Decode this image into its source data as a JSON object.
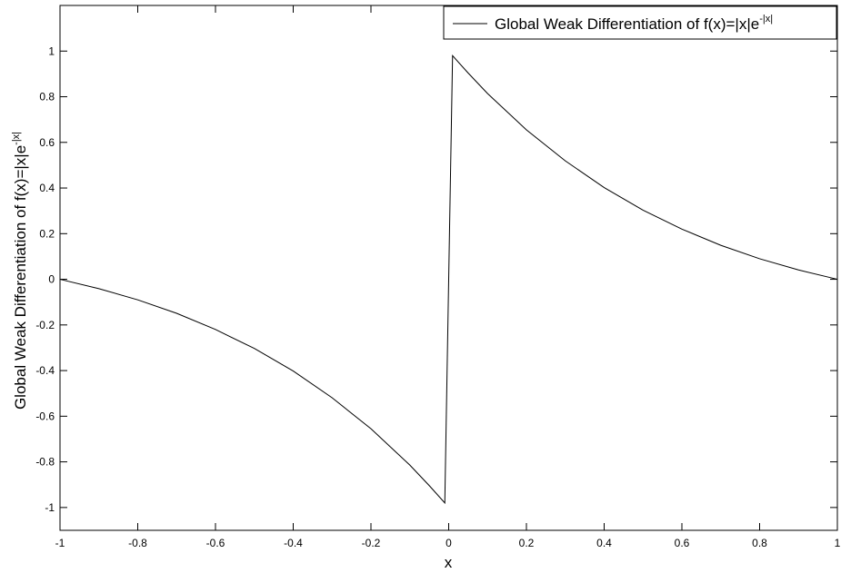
{
  "chart_data": {
    "type": "line",
    "xlabel": "x",
    "ylabel_main": "Global Weak Differentiation of f(x)=|x|e",
    "ylabel_sup": "-|x|",
    "xlim": [
      -1,
      1
    ],
    "ylim": [
      -1.1,
      1.2
    ],
    "grid": false,
    "legend_position": "top-right",
    "x_ticks": [
      -1,
      -0.8,
      -0.6,
      -0.4,
      -0.2,
      0,
      0.2,
      0.4,
      0.6,
      0.8,
      1
    ],
    "x_tick_labels": [
      "-1",
      "-0.8",
      "-0.6",
      "-0.4",
      "-0.2",
      "0",
      "0.2",
      "0.4",
      "0.6",
      "0.8",
      "1"
    ],
    "y_ticks": [
      -1,
      -0.8,
      -0.6,
      -0.4,
      -0.2,
      0,
      0.2,
      0.4,
      0.6,
      0.8,
      1
    ],
    "y_tick_labels": [
      "-1",
      "-0.8",
      "-0.6",
      "-0.4",
      "-0.2",
      "0",
      "0.2",
      "0.4",
      "0.6",
      "0.8",
      "1"
    ],
    "series": [
      {
        "legend_main": "Global Weak Differentiation of f(x)=|x|e",
        "legend_sup": "-|x|",
        "color": "#000000",
        "x": [
          -1,
          -0.9,
          -0.8,
          -0.7,
          -0.6,
          -0.5,
          -0.4,
          -0.3,
          -0.2,
          -0.1,
          -0.05,
          -0.01,
          0.01,
          0.05,
          0.1,
          0.2,
          0.3,
          0.4,
          0.5,
          0.6,
          0.7,
          0.8,
          0.9,
          1
        ],
        "y": [
          0,
          -0.041,
          -0.09,
          -0.149,
          -0.22,
          -0.303,
          -0.402,
          -0.519,
          -0.655,
          -0.814,
          -0.904,
          -0.98,
          0.98,
          0.904,
          0.814,
          0.655,
          0.519,
          0.402,
          0.303,
          0.22,
          0.149,
          0.09,
          0.041,
          0
        ]
      }
    ]
  }
}
